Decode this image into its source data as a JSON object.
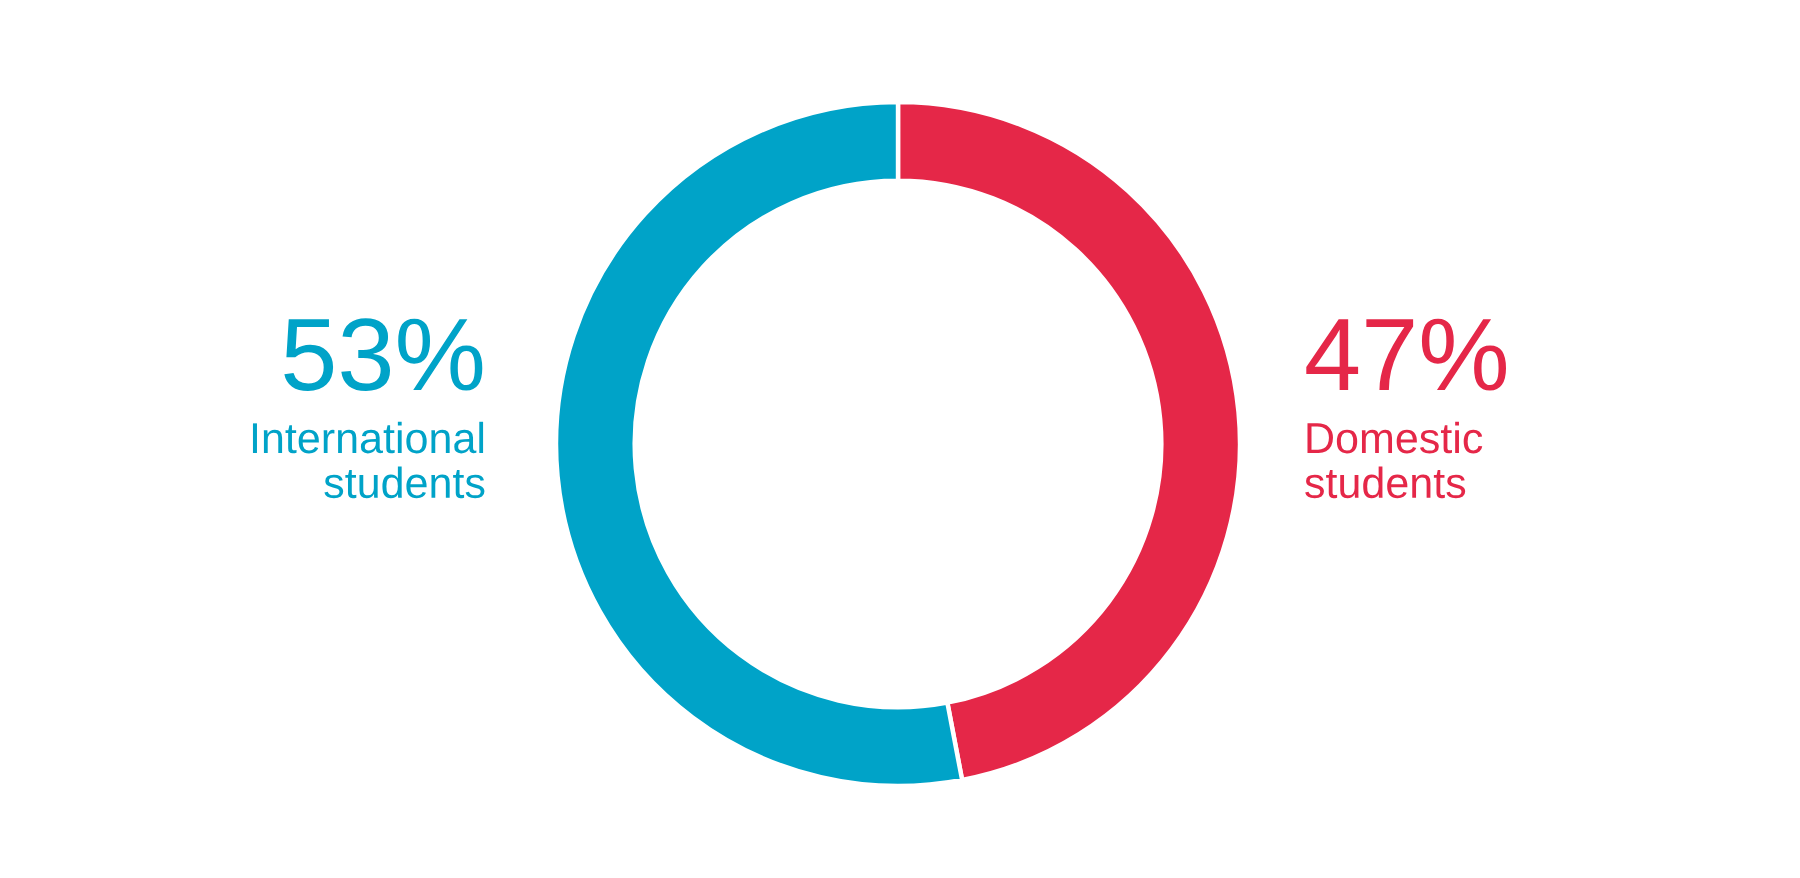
{
  "chart_data": {
    "type": "donut",
    "categories": [
      "Domestic\nstudents",
      "International\nstudents"
    ],
    "values": [
      47,
      53
    ],
    "colors": [
      "#e52748",
      "#00a3c8"
    ],
    "value_labels": [
      "47%",
      "53%"
    ]
  }
}
